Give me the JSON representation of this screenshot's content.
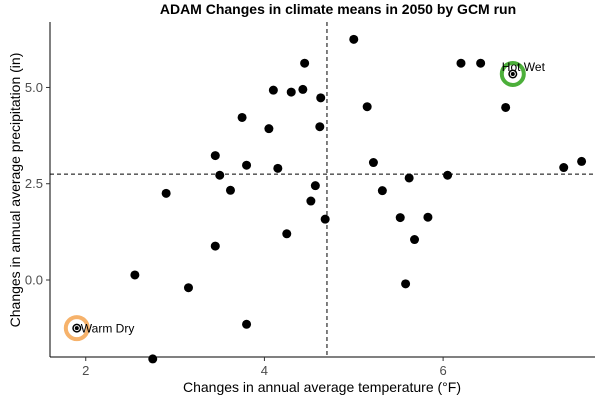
{
  "chart_data": {
    "type": "scatter",
    "title": "ADAM Changes in climate means in 2050 by GCM run",
    "xlabel": "Changes in annual average temperature (°F)",
    "ylabel": "Changes in annual average precipitation (in)",
    "xlim": [
      1.6,
      7.7
    ],
    "ylim": [
      -2.0,
      6.7
    ],
    "xticks": [
      2,
      4,
      6
    ],
    "xtick_labels": [
      "2",
      "4",
      "6"
    ],
    "yticks": [
      0.0,
      2.5,
      5.0
    ],
    "ytick_labels": [
      "0.0",
      "2.5",
      "5.0"
    ],
    "grid": false,
    "reference_lines": {
      "x": 4.7,
      "y": 2.75
    },
    "points": [
      {
        "x": 2.55,
        "y": 0.13
      },
      {
        "x": 2.9,
        "y": 2.25
      },
      {
        "x": 3.15,
        "y": -0.2
      },
      {
        "x": 3.45,
        "y": 3.23
      },
      {
        "x": 3.5,
        "y": 2.72
      },
      {
        "x": 3.45,
        "y": 0.88
      },
      {
        "x": 3.62,
        "y": 2.33
      },
      {
        "x": 3.75,
        "y": 4.22
      },
      {
        "x": 3.8,
        "y": 2.98
      },
      {
        "x": 3.8,
        "y": -1.15
      },
      {
        "x": 4.05,
        "y": 3.93
      },
      {
        "x": 4.1,
        "y": 4.93
      },
      {
        "x": 4.15,
        "y": 2.9
      },
      {
        "x": 4.25,
        "y": 1.2
      },
      {
        "x": 4.3,
        "y": 4.88
      },
      {
        "x": 4.43,
        "y": 4.95
      },
      {
        "x": 4.45,
        "y": 5.63
      },
      {
        "x": 4.52,
        "y": 2.05
      },
      {
        "x": 4.57,
        "y": 2.45
      },
      {
        "x": 4.62,
        "y": 3.98
      },
      {
        "x": 4.63,
        "y": 4.73
      },
      {
        "x": 4.68,
        "y": 1.58
      },
      {
        "x": 5.0,
        "y": 6.25
      },
      {
        "x": 5.15,
        "y": 4.5
      },
      {
        "x": 5.22,
        "y": 3.05
      },
      {
        "x": 5.32,
        "y": 2.32
      },
      {
        "x": 5.52,
        "y": 1.62
      },
      {
        "x": 5.58,
        "y": -0.1
      },
      {
        "x": 5.62,
        "y": 2.65
      },
      {
        "x": 5.68,
        "y": 1.05
      },
      {
        "x": 5.83,
        "y": 1.63
      },
      {
        "x": 6.05,
        "y": 2.72
      },
      {
        "x": 6.2,
        "y": 5.63
      },
      {
        "x": 6.42,
        "y": 5.63
      },
      {
        "x": 6.7,
        "y": 4.48
      },
      {
        "x": 6.78,
        "y": 5.35
      },
      {
        "x": 7.35,
        "y": 2.92
      },
      {
        "x": 7.55,
        "y": 3.08
      },
      {
        "x": 1.9,
        "y": -1.25
      },
      {
        "x": 2.75,
        "y": -2.05
      }
    ],
    "highlights": [
      {
        "label": "Warm Dry",
        "x": 1.9,
        "y": -1.25,
        "color": "#f6b26b"
      },
      {
        "label": "Hot Wet",
        "x": 6.78,
        "y": 5.35,
        "color": "#4caf3a"
      }
    ],
    "point_color": "#000000"
  }
}
